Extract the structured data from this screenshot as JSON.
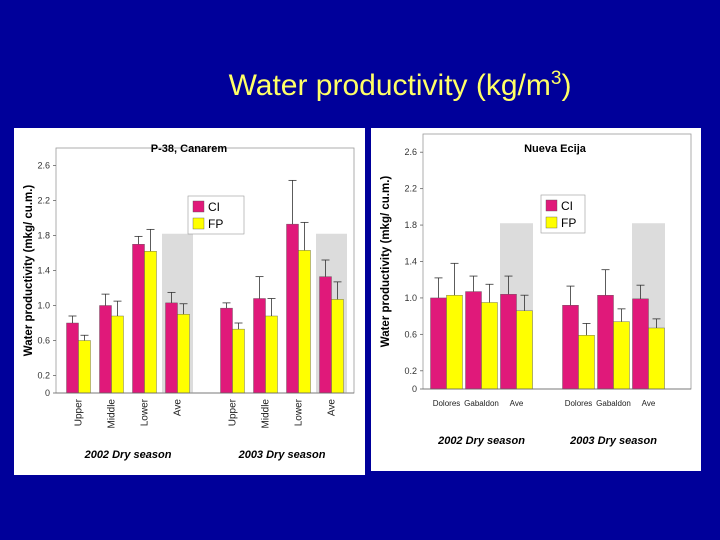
{
  "slide": {
    "title_main": "Water productivity (kg/m",
    "title_sup": "3",
    "title_close": ")",
    "colors": {
      "background": "#00009a",
      "title": "#ffff66"
    }
  },
  "chart_data": [
    {
      "type": "bar",
      "title": "P-38, Canarem",
      "ylabel": "Water productivity (mkg/ cu.m.)",
      "ylim": [
        0,
        2.8
      ],
      "yticks": [
        "0",
        "0.2",
        "0.6",
        "1.0",
        "1.4",
        "1.8",
        "2.2",
        "2.6"
      ],
      "ytick_values": [
        0,
        0.2,
        0.6,
        1.0,
        1.4,
        1.8,
        2.2,
        2.6
      ],
      "legend": [
        "CI",
        "FP"
      ],
      "legend_position": "top-center",
      "colors": {
        "CI": "#e0197a",
        "FP": "#ffff00",
        "shade": "#dcdcdc"
      },
      "groups": [
        {
          "label": "2002 Dry season",
          "categories": [
            "Upper",
            "Middle",
            "Lower",
            "Ave"
          ],
          "CI": [
            0.8,
            1.0,
            1.7,
            1.03
          ],
          "CI_err": [
            0.08,
            0.13,
            0.09,
            0.12
          ],
          "FP": [
            0.6,
            0.88,
            1.62,
            0.9
          ],
          "FP_err": [
            0.06,
            0.17,
            0.25,
            0.12
          ],
          "shaded": [
            false,
            false,
            false,
            true
          ]
        },
        {
          "label": "2003 Dry season",
          "categories": [
            "Upper",
            "Middle",
            "Lower",
            "Ave"
          ],
          "CI": [
            0.97,
            1.08,
            1.93,
            1.33
          ],
          "CI_err": [
            0.06,
            0.25,
            0.5,
            0.19
          ],
          "FP": [
            0.73,
            0.88,
            1.63,
            1.07
          ],
          "FP_err": [
            0.07,
            0.2,
            0.32,
            0.2
          ],
          "shaded": [
            false,
            false,
            false,
            true
          ]
        }
      ]
    },
    {
      "type": "bar",
      "title": "Nueva Ecija",
      "ylabel": "Water productivity (mkg/ cu.m.)",
      "ylim": [
        0,
        2.8
      ],
      "yticks": [
        "0",
        "0.2",
        "0.6",
        "1.0",
        "1.4",
        "1.8",
        "2.2",
        "2.6"
      ],
      "ytick_values": [
        0,
        0.2,
        0.6,
        1.0,
        1.4,
        1.8,
        2.2,
        2.6
      ],
      "legend": [
        "CI",
        "FP"
      ],
      "legend_position": "top-center",
      "colors": {
        "CI": "#e0197a",
        "FP": "#ffff00",
        "shade": "#dcdcdc"
      },
      "groups": [
        {
          "label": "2002 Dry season",
          "categories": [
            "Dolores",
            "Gabaldon",
            "Ave"
          ],
          "CI": [
            1.0,
            1.07,
            1.04
          ],
          "CI_err": [
            0.22,
            0.17,
            0.2
          ],
          "FP": [
            1.03,
            0.95,
            0.86
          ],
          "FP_err": [
            0.35,
            0.2,
            0.17
          ],
          "shaded": [
            false,
            false,
            true
          ]
        },
        {
          "label": "2003 Dry season",
          "categories": [
            "Dolores",
            "Gabaldon",
            "Ave"
          ],
          "CI": [
            0.92,
            1.03,
            0.99
          ],
          "CI_err": [
            0.21,
            0.28,
            0.15
          ],
          "FP": [
            0.59,
            0.74,
            0.67
          ],
          "FP_err": [
            0.13,
            0.14,
            0.1
          ],
          "shaded": [
            false,
            false,
            true
          ]
        }
      ]
    }
  ]
}
